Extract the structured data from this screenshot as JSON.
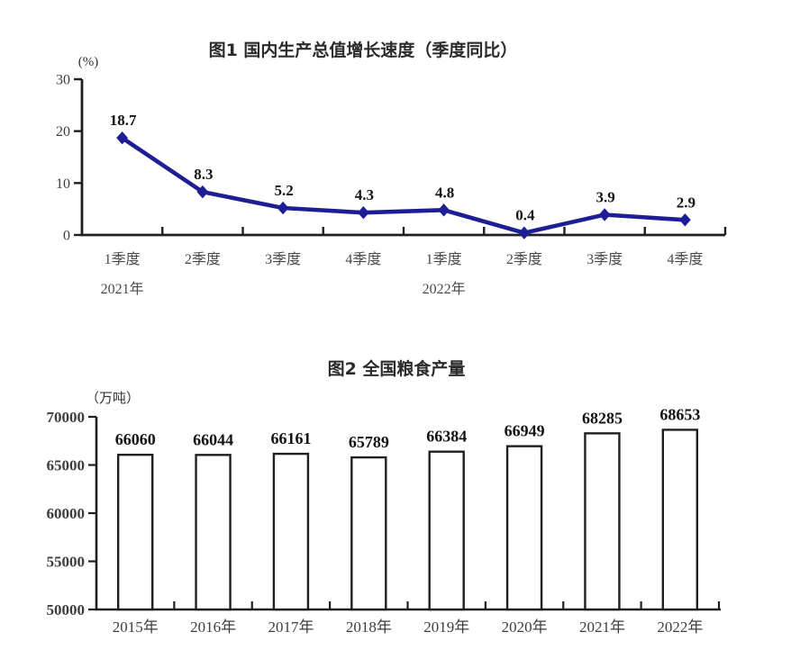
{
  "page": {
    "background": "#ffffff"
  },
  "chart_data": [
    {
      "id": "gdp-growth",
      "type": "line",
      "title": "图1  国内生产总值增长速度（季度同比）",
      "unit_label": "(%)",
      "categories": [
        "1季度",
        "2季度",
        "3季度",
        "4季度",
        "1季度",
        "2季度",
        "3季度",
        "4季度"
      ],
      "year_labels": [
        {
          "text": "2021年",
          "category_index": 0
        },
        {
          "text": "2022年",
          "category_index": 4
        }
      ],
      "values": [
        18.7,
        8.3,
        5.2,
        4.3,
        4.8,
        0.4,
        3.9,
        2.9
      ],
      "value_labels": [
        "18.7",
        "8.3",
        "5.2",
        "4.3",
        "4.8",
        "0.4",
        "3.9",
        "2.9"
      ],
      "ylim": [
        0,
        30
      ],
      "yticks": [
        0,
        10,
        20,
        30
      ],
      "ytick_labels": [
        "0",
        "10",
        "20",
        "30"
      ],
      "line_color": "#1d1d96",
      "marker": "diamond",
      "axis_color": "#1f1f1f",
      "grid": false,
      "legend": "none"
    },
    {
      "id": "grain-output",
      "type": "bar",
      "title": "图2  全国粮食产量",
      "unit_label": "（万吨）",
      "categories": [
        "2015年",
        "2016年",
        "2017年",
        "2018年",
        "2019年",
        "2020年",
        "2021年",
        "2022年"
      ],
      "values": [
        66060,
        66044,
        66161,
        65789,
        66384,
        66949,
        68285,
        68653
      ],
      "value_labels": [
        "66060",
        "66044",
        "66161",
        "65789",
        "66384",
        "66949",
        "68285",
        "68653"
      ],
      "ylim": [
        50000,
        70000
      ],
      "yticks": [
        50000,
        55000,
        60000,
        65000,
        70000
      ],
      "ytick_labels": [
        "50000",
        "55000",
        "60000",
        "65000",
        "70000"
      ],
      "bar_fill": "#ffffff",
      "bar_border": "#1f1f1f",
      "axis_color": "#1f1f1f",
      "grid": false,
      "legend": "none"
    }
  ]
}
